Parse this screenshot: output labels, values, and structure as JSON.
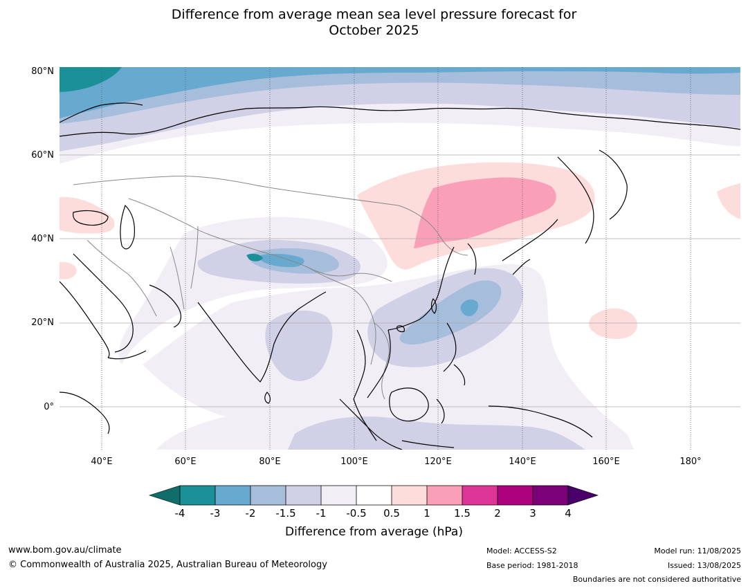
{
  "title_line1": "Difference from average mean sea level pressure forecast for",
  "title_line2": "October 2025",
  "lat_labels": [
    "80°N",
    "60°N",
    "40°N",
    "20°N",
    "0°"
  ],
  "lon_labels": [
    "40°E",
    "60°E",
    "80°E",
    "100°E",
    "120°E",
    "140°E",
    "160°E",
    "180°"
  ],
  "colorbar": {
    "title": "Difference from average (hPa)",
    "ticks": [
      "-4",
      "-3",
      "-2",
      "-1.5",
      "-1",
      "-0.5",
      "0.5",
      "1",
      "1.5",
      "2",
      "3",
      "4"
    ],
    "colors": {
      "lt_-4": "#0f6e6a",
      "-4_-3": "#1b9098",
      "-3_-2": "#67a9cf",
      "-2_-1.5": "#a6bddb",
      "-1.5_-1": "#d0d1e6",
      "-1_-0.5": "#f2eef6",
      "-0.5_0.5": "#ffffff",
      "0.5_1": "#fddcdc",
      "1_1.5": "#f9a0b8",
      "1.5_2": "#dd3497",
      "2_3": "#ae017e",
      "3_4": "#7a0177",
      "gt_4": "#49006a"
    }
  },
  "footer": {
    "website": "www.bom.gov.au/climate",
    "copyright": "© Commonwealth of Australia 2025, Australian Bureau of Meteorology",
    "model": "Model: ACCESS-S2",
    "base_period": "Base period: 1981-2018",
    "model_run": "Model run: 11/08/2025",
    "issued": "Issued: 13/08/2025",
    "disclaimer": "Boundaries are not considered authoritative"
  }
}
